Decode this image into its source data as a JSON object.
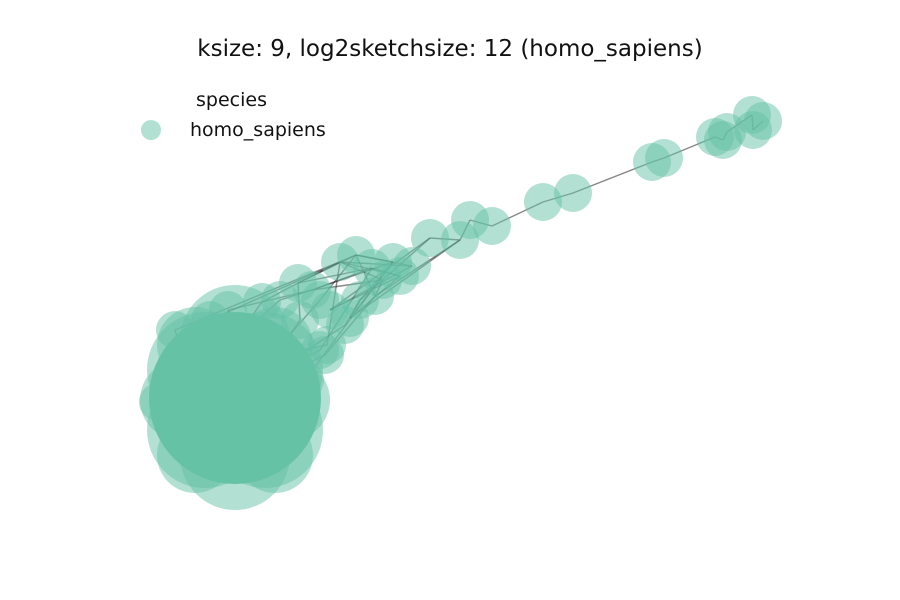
{
  "chart_data": {
    "type": "network",
    "title": "ksize: 9, log2sketchsize: 12 (homo_sapiens)",
    "legend": {
      "title": "species",
      "placement": "top-left",
      "entries": [
        {
          "label": "homo_sapiens",
          "color": "#66c2a5"
        }
      ]
    },
    "axes_visible": false,
    "node_alpha": 0.5,
    "node_color": "#66c2a5",
    "edge_color": "#222222",
    "structure": "one dense cluster of many overlapping nodes at lower-left, with a chain of nodes extending toward the upper-right"
  }
}
